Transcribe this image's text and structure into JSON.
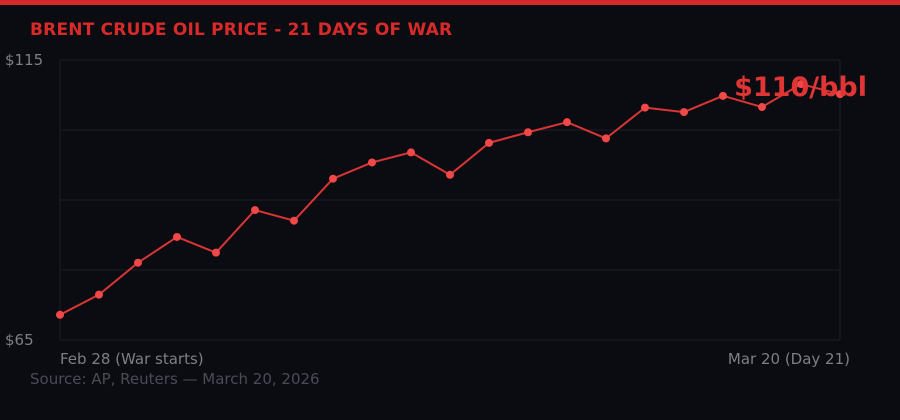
{
  "title": "BRENT CRUDE OIL PRICE - 21 DAYS OF WAR",
  "source": "Source: AP, Reuters — March 20, 2026",
  "colors": {
    "accent": "#d92a2a",
    "line": "#d93535",
    "point": "#f24848",
    "background": "#0b0c12",
    "grid": "#1c1d28"
  },
  "chart_data": {
    "type": "line",
    "title": "BRENT CRUDE OIL PRICE - 21 DAYS OF WAR",
    "xlabel": "",
    "ylabel": "",
    "ylim": [
      65,
      115
    ],
    "yticks": [
      115,
      65
    ],
    "ytick_labels": [
      "$115",
      "$65"
    ],
    "x_labels_shown": [
      "Feb 28 (War starts)",
      "Mar 20 (Day 21)"
    ],
    "x": [
      1,
      2,
      3,
      4,
      5,
      6,
      7,
      8,
      9,
      10,
      11,
      12,
      13,
      14,
      15,
      16,
      17,
      18,
      19,
      20,
      21
    ],
    "series": [
      {
        "values": [
          69.5,
          73.1,
          78.8,
          83.4,
          80.6,
          88.2,
          86.3,
          93.8,
          96.7,
          98.5,
          94.5,
          100.2,
          102.1,
          103.9,
          101.0,
          106.5,
          105.7,
          108.6,
          106.6,
          110.7,
          108.9
        ]
      }
    ],
    "grid": true,
    "annotation": "$110/bbl"
  }
}
